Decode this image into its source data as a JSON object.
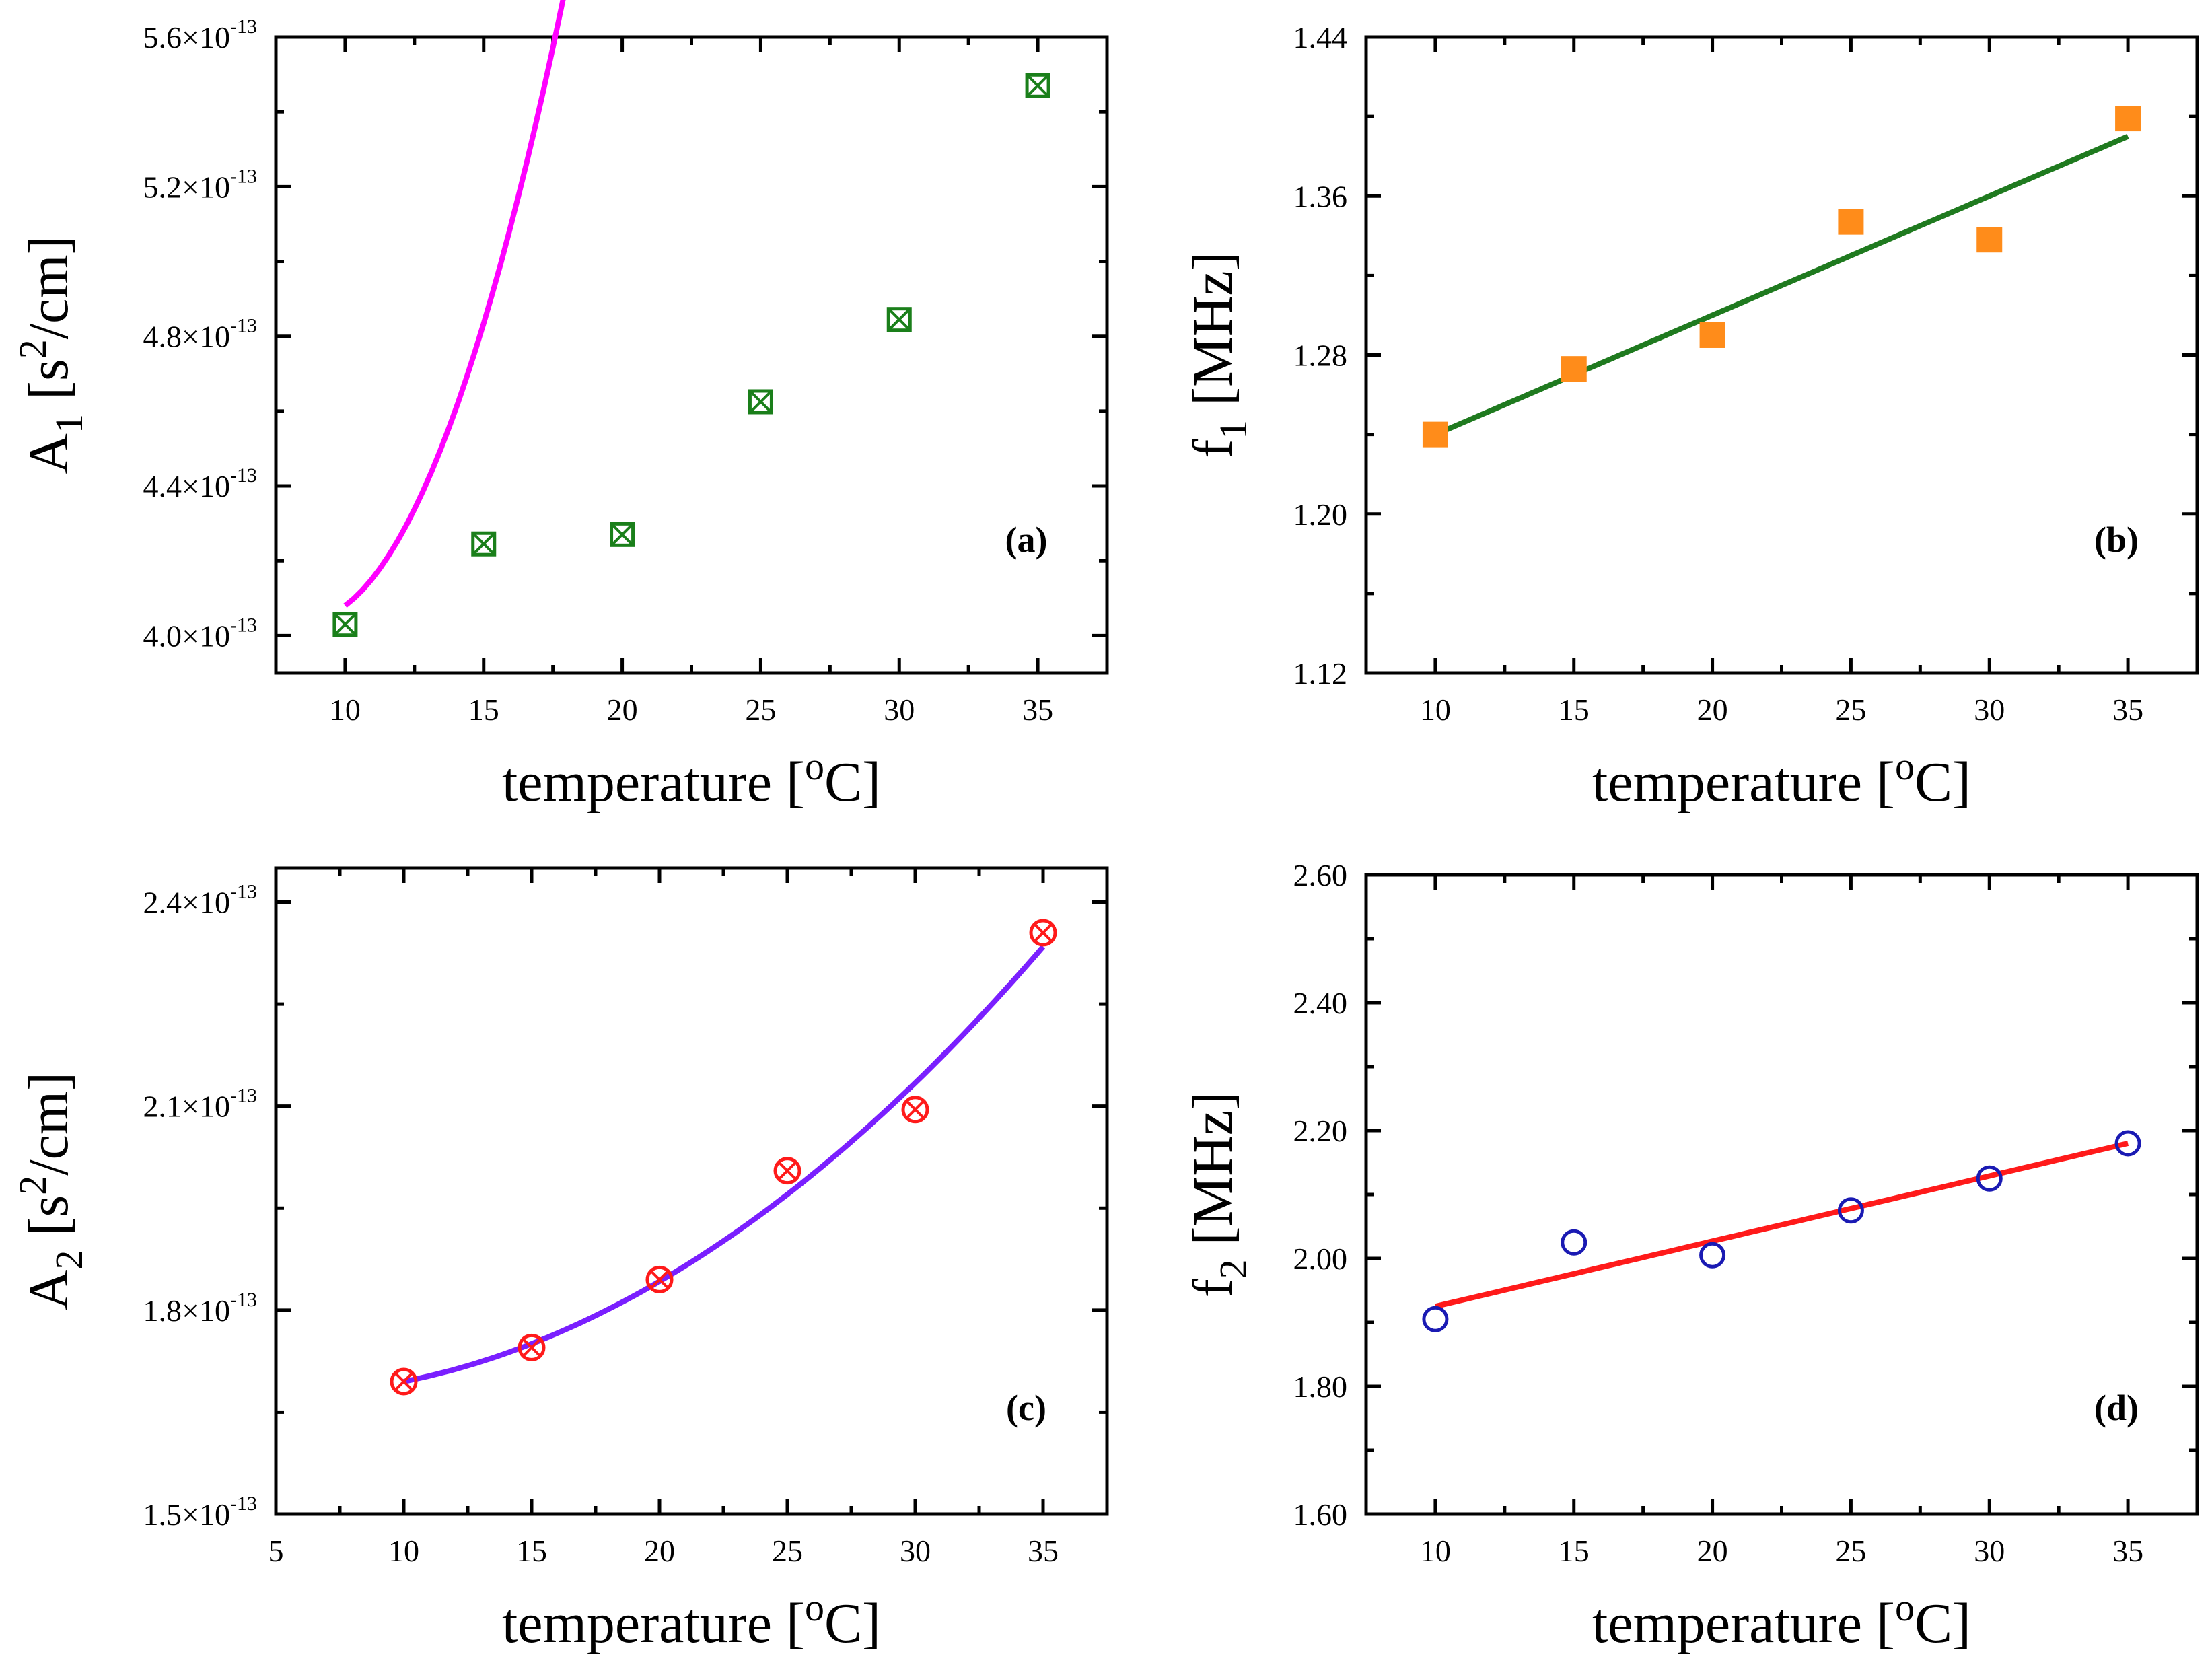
{
  "chart_data": [
    {
      "id": "a",
      "type": "scatter",
      "panel_label": "(a)",
      "xlabel": "temperature [oC]",
      "xlabel_parts": {
        "pre": "temperature [",
        "sup": "o",
        "post": "C]"
      },
      "ylabel_parts": {
        "main": "A",
        "sub": "1",
        "mid": " [s",
        "sup": "2",
        "post": "/cm]"
      },
      "xlim": [
        7.5,
        37.5
      ],
      "ylim": [
        3.9e-13,
        5.6e-13
      ],
      "xticks": [
        10,
        15,
        20,
        25,
        30,
        35
      ],
      "xtick_labels": [
        "10",
        "15",
        "20",
        "25",
        "30",
        "35"
      ],
      "yticks": [
        4e-13,
        4.4e-13,
        4.8e-13,
        5.2e-13,
        5.6e-13
      ],
      "ytick_labels": [
        {
          "mant": "4.0×10",
          "exp": "-13"
        },
        {
          "mant": "4.4×10",
          "exp": "-13"
        },
        {
          "mant": "4.8×10",
          "exp": "-13"
        },
        {
          "mant": "5.2×10",
          "exp": "-13"
        },
        {
          "mant": "5.6×10",
          "exp": "-13"
        }
      ],
      "marker": "boxed-x",
      "marker_color": "#1a7f1a",
      "points": {
        "x": [
          10,
          15,
          20,
          25,
          30,
          35
        ],
        "y": [
          4.03e-13,
          4.245e-13,
          4.27e-13,
          4.625e-13,
          4.845e-13,
          5.47e-13
        ]
      },
      "fit": {
        "kind": "poly2",
        "color": "#ff00ff",
        "x_range": [
          10,
          35
        ],
        "a": 4.08e-13,
        "b": 5.5e-15,
        "c": 1.92e-15
      }
    },
    {
      "id": "b",
      "type": "scatter",
      "panel_label": "(b)",
      "xlabel": "temperature [oC]",
      "xlabel_parts": {
        "pre": "temperature [",
        "sup": "o",
        "post": "C]"
      },
      "ylabel_parts": {
        "main": "f",
        "sub": "1",
        "mid": " [MHz]",
        "sup": "",
        "post": ""
      },
      "xlim": [
        7.5,
        37.5
      ],
      "ylim": [
        1.12,
        1.44
      ],
      "xticks": [
        10,
        15,
        20,
        25,
        30,
        35
      ],
      "xtick_labels": [
        "10",
        "15",
        "20",
        "25",
        "30",
        "35"
      ],
      "yticks": [
        1.12,
        1.2,
        1.28,
        1.36,
        1.44
      ],
      "ytick_labels": [
        {
          "mant": "1.12",
          "exp": ""
        },
        {
          "mant": "1.20",
          "exp": ""
        },
        {
          "mant": "1.28",
          "exp": ""
        },
        {
          "mant": "1.36",
          "exp": ""
        },
        {
          "mant": "1.44",
          "exp": ""
        }
      ],
      "marker": "filled-square",
      "marker_color": "#ff8c1a",
      "points": {
        "x": [
          10,
          15,
          20,
          25,
          30,
          35
        ],
        "y": [
          1.24,
          1.273,
          1.29,
          1.347,
          1.338,
          1.399
        ]
      },
      "fit": {
        "kind": "linear",
        "color": "#1f7a1f",
        "x_range": [
          10,
          35
        ],
        "y_start": 1.24,
        "y_end": 1.39
      }
    },
    {
      "id": "c",
      "type": "scatter",
      "panel_label": "(c)",
      "xlabel": "temperature [oC]",
      "xlabel_parts": {
        "pre": "temperature [",
        "sup": "o",
        "post": "C]"
      },
      "ylabel_parts": {
        "main": "A",
        "sub": "2",
        "mid": " [s",
        "sup": "2",
        "post": "/cm]"
      },
      "xlim": [
        5,
        37.5
      ],
      "ylim": [
        1.5e-13,
        2.45e-13
      ],
      "xticks": [
        5,
        10,
        15,
        20,
        25,
        30,
        35
      ],
      "xtick_labels": [
        "5",
        "10",
        "15",
        "20",
        "25",
        "30",
        "35"
      ],
      "yticks": [
        1.5e-13,
        1.8e-13,
        2.1e-13,
        2.4e-13
      ],
      "ytick_labels": [
        {
          "mant": "1.5×10",
          "exp": "-13"
        },
        {
          "mant": "1.8×10",
          "exp": "-13"
        },
        {
          "mant": "2.1×10",
          "exp": "-13"
        },
        {
          "mant": "2.4×10",
          "exp": "-13"
        }
      ],
      "marker": "circled-x",
      "marker_color": "#ff1a1a",
      "points": {
        "x": [
          10,
          15,
          20,
          25,
          30,
          35
        ],
        "y": [
          1.695e-13,
          1.745e-13,
          1.845e-13,
          2.005e-13,
          2.095e-13,
          2.355e-13
        ]
      },
      "fit": {
        "kind": "poly2",
        "color": "#7a1fff",
        "x_range": [
          10,
          35
        ],
        "a": 1.695e-13,
        "b": 7.5e-16,
        "c": 7.23e-17
      }
    },
    {
      "id": "d",
      "type": "scatter",
      "panel_label": "(d)",
      "xlabel": "temperature [oC]",
      "xlabel_parts": {
        "pre": "temperature [",
        "sup": "o",
        "post": "C]"
      },
      "ylabel_parts": {
        "main": "f",
        "sub": "2",
        "mid": " [MHz]",
        "sup": "",
        "post": ""
      },
      "xlim": [
        7.5,
        37.5
      ],
      "ylim": [
        1.6,
        2.6
      ],
      "xticks": [
        10,
        15,
        20,
        25,
        30,
        35
      ],
      "xtick_labels": [
        "10",
        "15",
        "20",
        "25",
        "30",
        "35"
      ],
      "yticks": [
        1.6,
        1.8,
        2.0,
        2.2,
        2.4,
        2.6
      ],
      "ytick_labels": [
        {
          "mant": "1.60",
          "exp": ""
        },
        {
          "mant": "1.80",
          "exp": ""
        },
        {
          "mant": "2.00",
          "exp": ""
        },
        {
          "mant": "2.20",
          "exp": ""
        },
        {
          "mant": "2.40",
          "exp": ""
        },
        {
          "mant": "2.60",
          "exp": ""
        }
      ],
      "marker": "open-circle",
      "marker_color": "#1a1ab3",
      "points": {
        "x": [
          10,
          15,
          20,
          25,
          30,
          35
        ],
        "y": [
          1.905,
          2.025,
          2.005,
          2.075,
          2.125,
          2.18
        ]
      },
      "fit": {
        "kind": "linear",
        "color": "#ff1a1a",
        "x_range": [
          10,
          35
        ],
        "y_start": 1.925,
        "y_end": 2.18
      }
    }
  ]
}
